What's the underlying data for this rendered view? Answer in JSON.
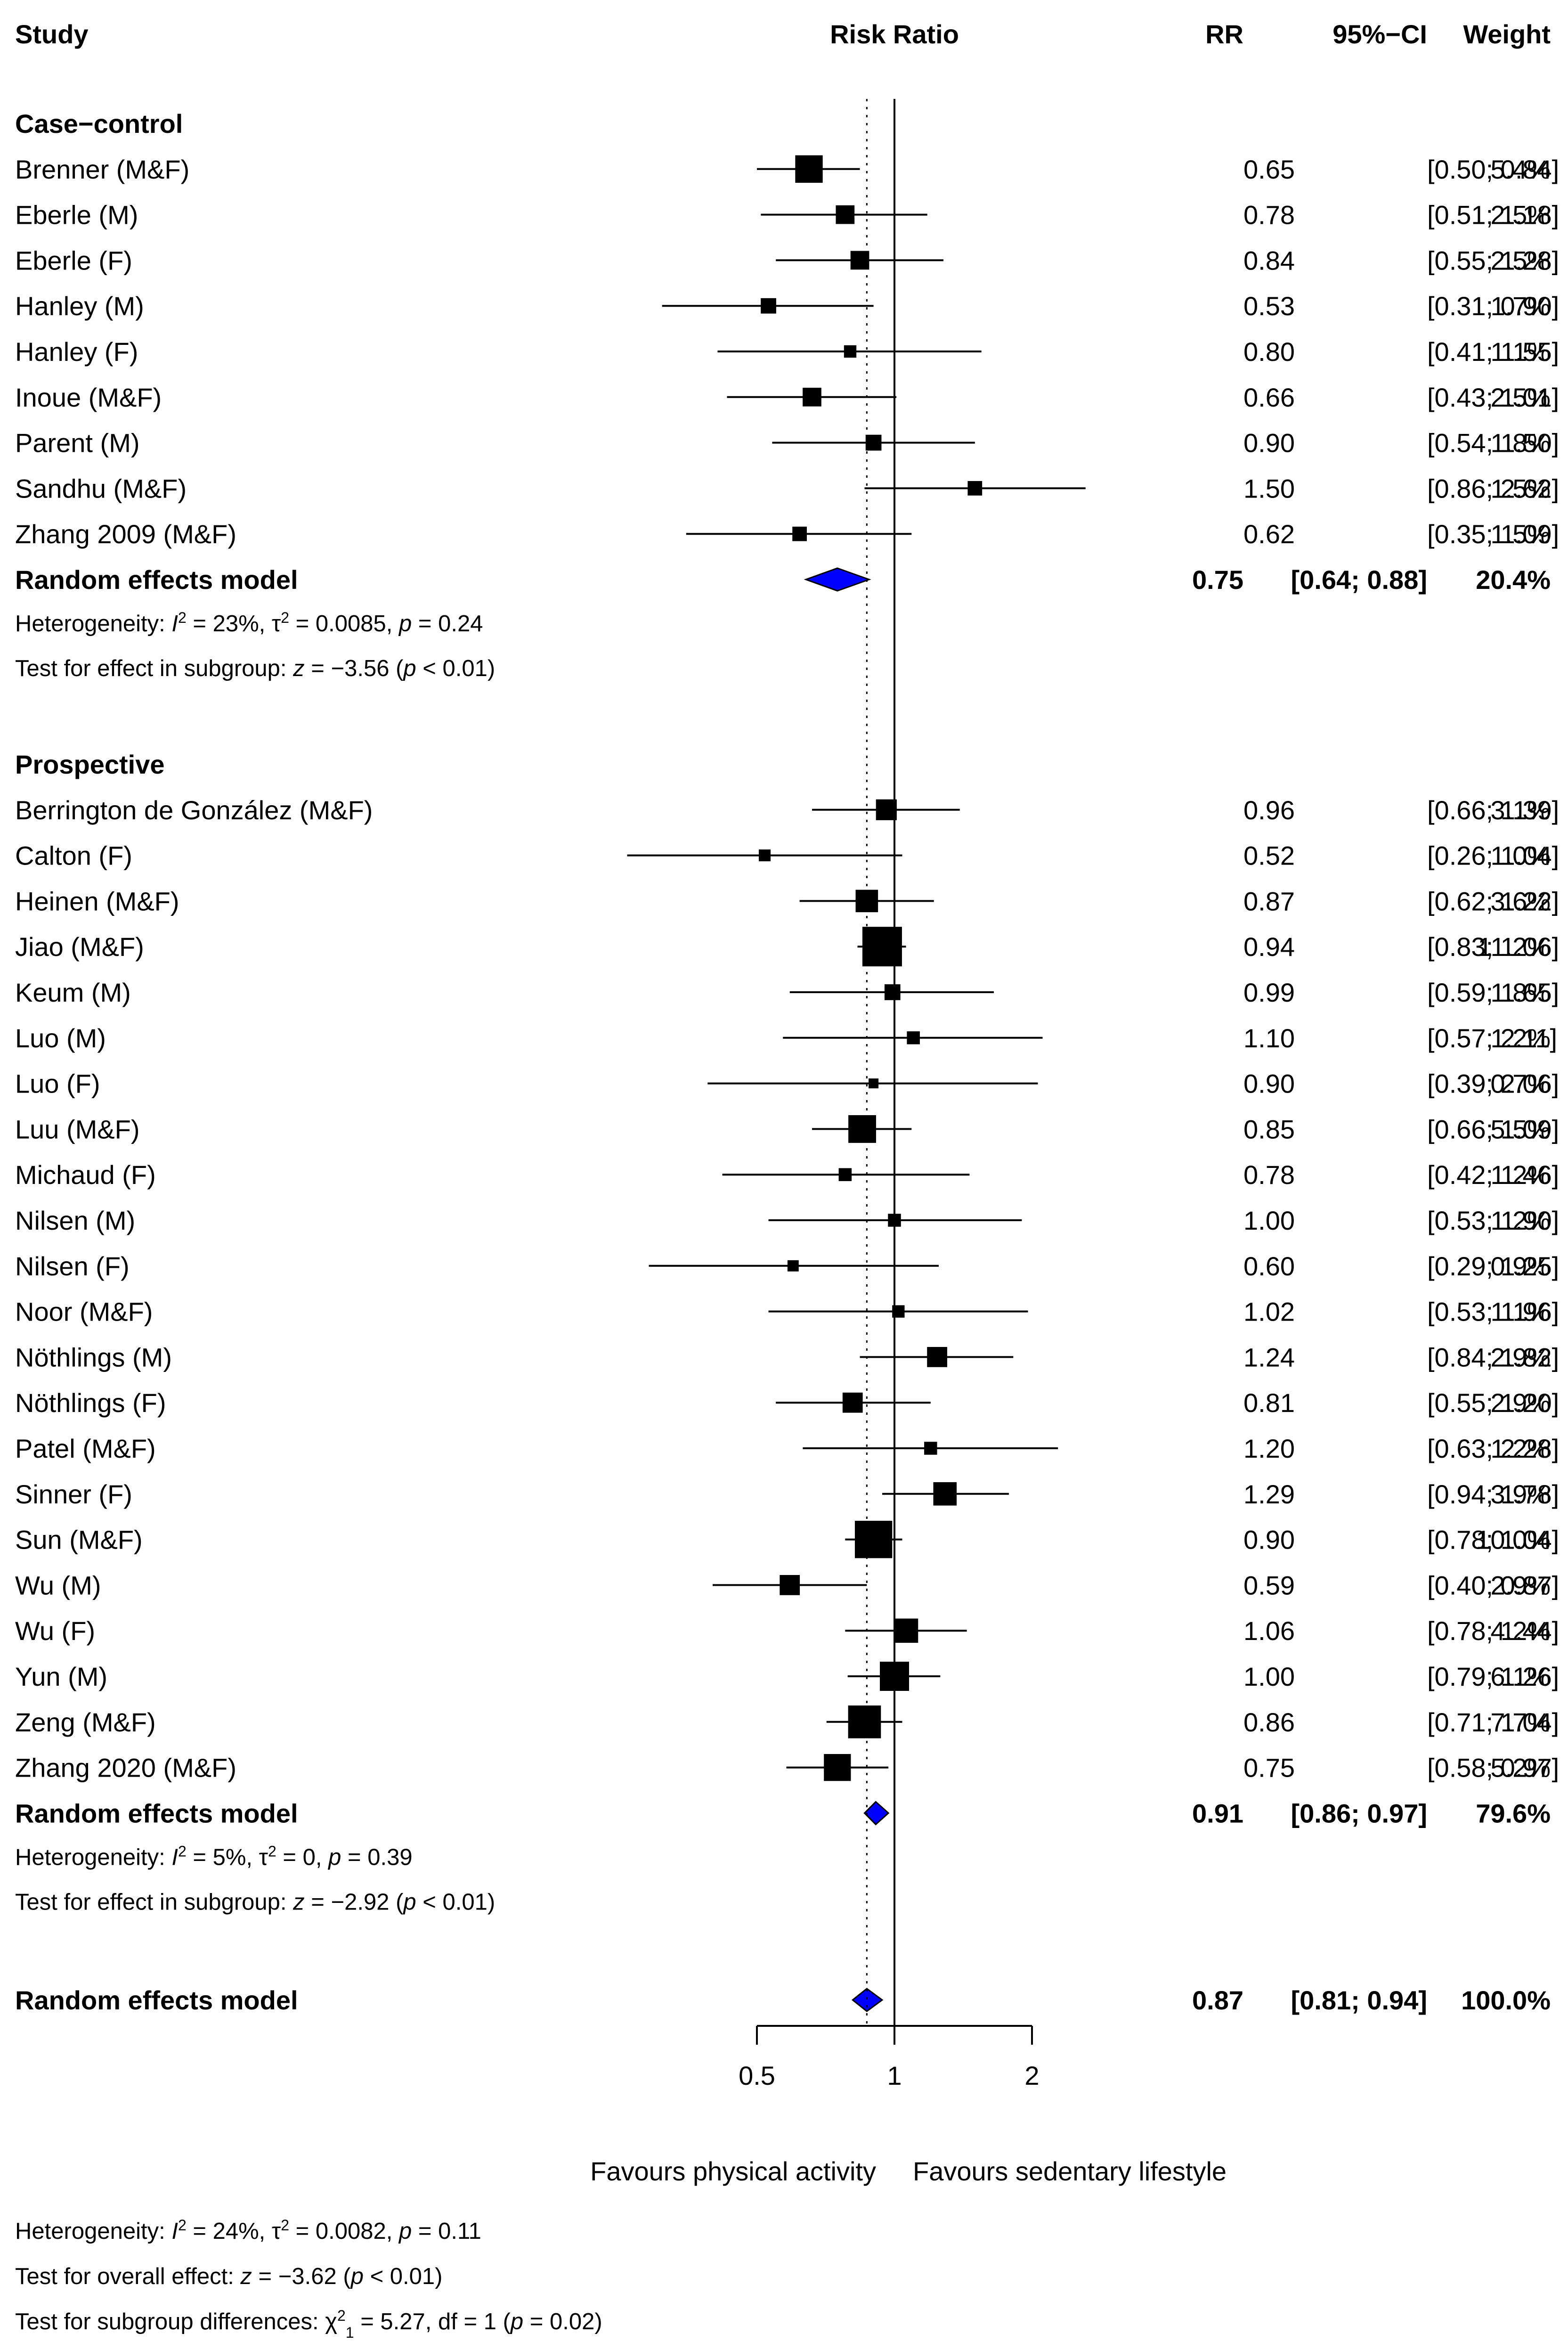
{
  "chart_data": {
    "type": "forest",
    "header": {
      "study": "Study",
      "risk_ratio": "Risk Ratio",
      "rr": "RR",
      "ci": "95%−CI",
      "weight": "Weight"
    },
    "axis": {
      "scale": "log",
      "ticks": [
        0.5,
        1,
        2
      ],
      "tick_labels": [
        "0.5",
        "1",
        "2"
      ],
      "null_value": 1,
      "overall_estimate": 0.87,
      "label_left": "Favours physical activity",
      "label_right": "Favours sedentary lifestyle"
    },
    "colors": {
      "diamond_fill": "#0000ff",
      "marker": "#000000"
    },
    "groups": [
      {
        "name": "Case−control",
        "studies": [
          {
            "label": "Brenner (M&F)",
            "rr": 0.65,
            "lo": 0.5,
            "hi": 0.84,
            "rr_text": "0.65",
            "ci_text": "[0.50; 0.84]",
            "weight": 5.4,
            "weight_text": "5.4%"
          },
          {
            "label": "Eberle (M)",
            "rr": 0.78,
            "lo": 0.51,
            "hi": 1.18,
            "rr_text": "0.78",
            "ci_text": "[0.51; 1.18]",
            "weight": 2.5,
            "weight_text": "2.5%"
          },
          {
            "label": "Eberle (F)",
            "rr": 0.84,
            "lo": 0.55,
            "hi": 1.28,
            "rr_text": "0.84",
            "ci_text": "[0.55; 1.28]",
            "weight": 2.5,
            "weight_text": "2.5%"
          },
          {
            "label": "Hanley (M)",
            "rr": 0.53,
            "lo": 0.31,
            "hi": 0.9,
            "rr_text": "0.53",
            "ci_text": "[0.31; 0.90]",
            "weight": 1.7,
            "weight_text": "1.7%"
          },
          {
            "label": "Hanley (F)",
            "rr": 0.8,
            "lo": 0.41,
            "hi": 1.55,
            "rr_text": "0.80",
            "ci_text": "[0.41; 1.55]",
            "weight": 1.1,
            "weight_text": "1.1%"
          },
          {
            "label": "Inoue (M&F)",
            "rr": 0.66,
            "lo": 0.43,
            "hi": 1.01,
            "rr_text": "0.66",
            "ci_text": "[0.43; 1.01]",
            "weight": 2.5,
            "weight_text": "2.5%"
          },
          {
            "label": "Parent (M)",
            "rr": 0.9,
            "lo": 0.54,
            "hi": 1.5,
            "rr_text": "0.90",
            "ci_text": "[0.54; 1.50]",
            "weight": 1.8,
            "weight_text": "1.8%"
          },
          {
            "label": "Sandhu (M&F)",
            "rr": 1.5,
            "lo": 0.86,
            "hi": 2.62,
            "rr_text": "1.50",
            "ci_text": "[0.86; 2.62]",
            "weight": 1.5,
            "weight_text": "1.5%"
          },
          {
            "label": "Zhang 2009 (M&F)",
            "rr": 0.62,
            "lo": 0.35,
            "hi": 1.09,
            "rr_text": "0.62",
            "ci_text": "[0.35; 1.09]",
            "weight": 1.5,
            "weight_text": "1.5%"
          }
        ],
        "model": {
          "label": "Random effects model",
          "rr": 0.75,
          "lo": 0.64,
          "hi": 0.88,
          "rr_text": "0.75",
          "ci_text": "[0.64; 0.88]",
          "weight_text": "20.4%"
        },
        "heterogeneity": {
          "prefix": "Heterogeneity: ",
          "i2_text": " = 23%, ",
          "tau2_text": " = 0.0085, ",
          "p_text": " = 0.24"
        },
        "test": {
          "prefix": "Test for effect in subgroup: ",
          "z_text": " = −3.56 (",
          "p_text": " < 0.01)"
        }
      },
      {
        "name": "Prospective",
        "studies": [
          {
            "label": "Berrington de González (M&F)",
            "rr": 0.96,
            "lo": 0.66,
            "hi": 1.39,
            "rr_text": "0.96",
            "ci_text": "[0.66; 1.39]",
            "weight": 3.1,
            "weight_text": "3.1%"
          },
          {
            "label": "Calton (F)",
            "rr": 0.52,
            "lo": 0.26,
            "hi": 1.04,
            "rr_text": "0.52",
            "ci_text": "[0.26; 1.04]",
            "weight": 1.0,
            "weight_text": "1.0%"
          },
          {
            "label": "Heinen (M&F)",
            "rr": 0.87,
            "lo": 0.62,
            "hi": 1.22,
            "rr_text": "0.87",
            "ci_text": "[0.62; 1.22]",
            "weight": 3.6,
            "weight_text": "3.6%"
          },
          {
            "label": "Jiao (M&F)",
            "rr": 0.94,
            "lo": 0.83,
            "hi": 1.06,
            "rr_text": "0.94",
            "ci_text": "[0.83; 1.06]",
            "weight": 11.2,
            "weight_text": "11.2%"
          },
          {
            "label": "Keum (M)",
            "rr": 0.99,
            "lo": 0.59,
            "hi": 1.65,
            "rr_text": "0.99",
            "ci_text": "[0.59; 1.65]",
            "weight": 1.8,
            "weight_text": "1.8%"
          },
          {
            "label": "Luo (M)",
            "rr": 1.1,
            "lo": 0.57,
            "hi": 2.11,
            "rr_text": "1.10",
            "ci_text": "[0.57; 2.11]",
            "weight": 1.2,
            "weight_text": "1.2%"
          },
          {
            "label": "Luo (F)",
            "rr": 0.9,
            "lo": 0.39,
            "hi": 2.06,
            "rr_text": "0.90",
            "ci_text": "[0.39; 2.06]",
            "weight": 0.7,
            "weight_text": "0.7%"
          },
          {
            "label": "Luu (M&F)",
            "rr": 0.85,
            "lo": 0.66,
            "hi": 1.09,
            "rr_text": "0.85",
            "ci_text": "[0.66; 1.09]",
            "weight": 5.5,
            "weight_text": "5.5%"
          },
          {
            "label": "Michaud (F)",
            "rr": 0.78,
            "lo": 0.42,
            "hi": 1.46,
            "rr_text": "0.78",
            "ci_text": "[0.42; 1.46]",
            "weight": 1.2,
            "weight_text": "1.2%"
          },
          {
            "label": "Nilsen (M)",
            "rr": 1.0,
            "lo": 0.53,
            "hi": 1.9,
            "rr_text": "1.00",
            "ci_text": "[0.53; 1.90]",
            "weight": 1.2,
            "weight_text": "1.2%"
          },
          {
            "label": "Nilsen (F)",
            "rr": 0.6,
            "lo": 0.29,
            "hi": 1.25,
            "rr_text": "0.60",
            "ci_text": "[0.29; 1.25]",
            "weight": 0.9,
            "weight_text": "0.9%"
          },
          {
            "label": "Noor (M&F)",
            "rr": 1.02,
            "lo": 0.53,
            "hi": 1.96,
            "rr_text": "1.02",
            "ci_text": "[0.53; 1.96]",
            "weight": 1.1,
            "weight_text": "1.1%"
          },
          {
            "label": "Nöthlings (M)",
            "rr": 1.24,
            "lo": 0.84,
            "hi": 1.82,
            "rr_text": "1.24",
            "ci_text": "[0.84; 1.82]",
            "weight": 2.9,
            "weight_text": "2.9%"
          },
          {
            "label": "Nöthlings (F)",
            "rr": 0.81,
            "lo": 0.55,
            "hi": 1.2,
            "rr_text": "0.81",
            "ci_text": "[0.55; 1.20]",
            "weight": 2.9,
            "weight_text": "2.9%"
          },
          {
            "label": "Patel (M&F)",
            "rr": 1.2,
            "lo": 0.63,
            "hi": 2.28,
            "rr_text": "1.20",
            "ci_text": "[0.63; 2.28]",
            "weight": 1.2,
            "weight_text": "1.2%"
          },
          {
            "label": "Sinner (F)",
            "rr": 1.29,
            "lo": 0.94,
            "hi": 1.78,
            "rr_text": "1.29",
            "ci_text": "[0.94; 1.78]",
            "weight": 3.9,
            "weight_text": "3.9%"
          },
          {
            "label": "Sun (M&F)",
            "rr": 0.9,
            "lo": 0.78,
            "hi": 1.04,
            "rr_text": "0.90",
            "ci_text": "[0.78; 1.04]",
            "weight": 10.0,
            "weight_text": "10.0%"
          },
          {
            "label": "Wu (M)",
            "rr": 0.59,
            "lo": 0.4,
            "hi": 0.87,
            "rr_text": "0.59",
            "ci_text": "[0.40; 0.87]",
            "weight": 2.9,
            "weight_text": "2.9%"
          },
          {
            "label": "Wu (F)",
            "rr": 1.06,
            "lo": 0.78,
            "hi": 1.44,
            "rr_text": "1.06",
            "ci_text": "[0.78; 1.44]",
            "weight": 4.2,
            "weight_text": "4.2%"
          },
          {
            "label": "Yun (M)",
            "rr": 1.0,
            "lo": 0.79,
            "hi": 1.26,
            "rr_text": "1.00",
            "ci_text": "[0.79; 1.26]",
            "weight": 6.1,
            "weight_text": "6.1%"
          },
          {
            "label": "Zeng (M&F)",
            "rr": 0.86,
            "lo": 0.71,
            "hi": 1.04,
            "rr_text": "0.86",
            "ci_text": "[0.71; 1.04]",
            "weight": 7.7,
            "weight_text": "7.7%"
          },
          {
            "label": "Zhang 2020 (M&F)",
            "rr": 0.75,
            "lo": 0.58,
            "hi": 0.97,
            "rr_text": "0.75",
            "ci_text": "[0.58; 0.97]",
            "weight": 5.2,
            "weight_text": "5.2%"
          }
        ],
        "model": {
          "label": "Random effects model",
          "rr": 0.91,
          "lo": 0.86,
          "hi": 0.97,
          "rr_text": "0.91",
          "ci_text": "[0.86; 0.97]",
          "weight_text": "79.6%"
        },
        "heterogeneity": {
          "prefix": "Heterogeneity: ",
          "i2_text": " = 5%, ",
          "tau2_text": " = 0, ",
          "p_text": " = 0.39"
        },
        "test": {
          "prefix": "Test for effect in subgroup: ",
          "z_text": " = −2.92 (",
          "p_text": " < 0.01)"
        }
      }
    ],
    "overall": {
      "label": "Random effects model",
      "rr": 0.87,
      "lo": 0.81,
      "hi": 0.94,
      "rr_text": "0.87",
      "ci_text": "[0.81; 0.94]",
      "weight_text": "100.0%"
    },
    "footer": {
      "heterogeneity": {
        "prefix": "Heterogeneity: ",
        "i2_text": " = 24%, ",
        "tau2_text": " = 0.0082, ",
        "p_text": " = 0.11"
      },
      "overall_test": {
        "prefix": "Test for overall effect: ",
        "z_text": " = −3.62 (",
        "p_text": " < 0.01)"
      },
      "subgroup_test": {
        "prefix": "Test for subgroup differences: ",
        "chi_sub": "1",
        "chi_text": " = 5.27, df = 1 (",
        "p_text": " = 0.02)"
      }
    },
    "symbols": {
      "I": "I",
      "two": "2",
      "tau": "τ",
      "p": "p",
      "z": "z",
      "chi": "χ"
    }
  }
}
